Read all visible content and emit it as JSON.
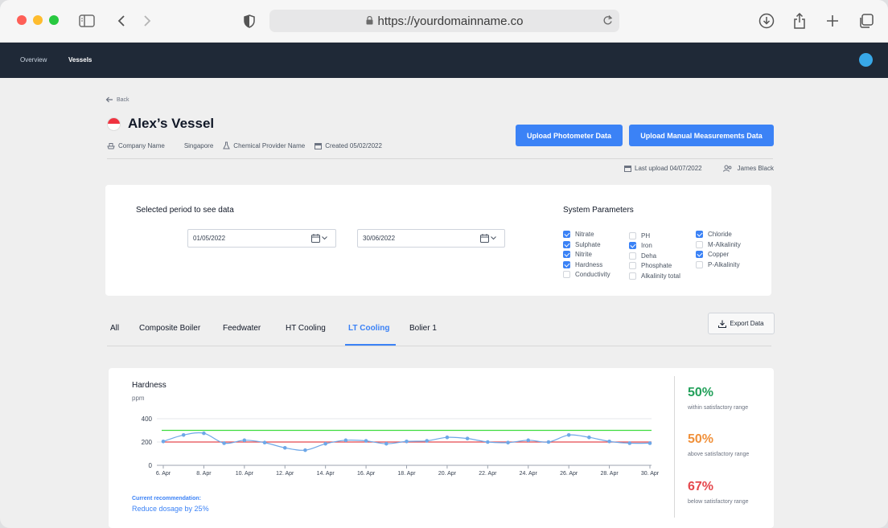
{
  "browser": {
    "url": "https://yourdomainname.co"
  },
  "nav": {
    "items": [
      "Overview",
      "Vessels"
    ],
    "active": "Vessels"
  },
  "page": {
    "back_label": "Back",
    "title": "Alex’s Vessel",
    "flag": "singapore",
    "company": "Company Name",
    "country": "Singapore",
    "chemical_provider": "Chemical Provider Name",
    "created": "Created 05/02/2022",
    "upload_photometer": "Upload Photometer Data",
    "upload_manual": "Upload Manual Measurements Data",
    "last_upload": "Last upload 04/07/2022",
    "user": "James Black"
  },
  "filters": {
    "period_title": "Selected period to see data",
    "start_date": "01/05/2022",
    "end_date": "30/06/2022",
    "params_title": "System Parameters",
    "params": [
      {
        "label": "Nitrate",
        "checked": true
      },
      {
        "label": "Sulphate",
        "checked": true
      },
      {
        "label": "Nitrite",
        "checked": true
      },
      {
        "label": "Hardness",
        "checked": true
      },
      {
        "label": "Conductivity",
        "checked": false
      },
      {
        "label": "PH",
        "checked": false
      },
      {
        "label": "Iron",
        "checked": true
      },
      {
        "label": "Deha",
        "checked": false
      },
      {
        "label": "Phosphate",
        "checked": false
      },
      {
        "label": "Alkalinity total",
        "checked": false
      },
      {
        "label": "Chloride",
        "checked": true
      },
      {
        "label": "M-Alkalinity",
        "checked": false
      },
      {
        "label": "Copper",
        "checked": true
      },
      {
        "label": "P-Alkalinity",
        "checked": false
      }
    ]
  },
  "tabs": {
    "items": [
      "All",
      "Composite Boiler",
      "Feedwater",
      "HT Cooling",
      "LT Cooling",
      "Bolier 1"
    ],
    "active": "LT Cooling",
    "export_label": "Export Data"
  },
  "chart": {
    "title": "Hardness",
    "unit": "ppm",
    "recommendation_label": "Current recommendation:",
    "recommendation": "Reduce dosage by 25%",
    "stats": [
      {
        "value": "50%",
        "label": "within satisfactory range",
        "color": "#22a05a"
      },
      {
        "value": "50%",
        "label": "above satisfactory range",
        "color": "#f0903a"
      },
      {
        "value": "67%",
        "label": "below satisfactory range",
        "color": "#e5484d"
      }
    ]
  },
  "chart_data": {
    "type": "line",
    "title": "Hardness",
    "ylabel": "ppm",
    "ylim": [
      0,
      400
    ],
    "yticks": [
      0,
      200,
      400
    ],
    "xticks": [
      "6. Apr",
      "8. Apr",
      "10. Apr",
      "12. Apr",
      "14. Apr",
      "16. Apr",
      "18. Apr",
      "20. Apr",
      "22. Apr",
      "24. Apr",
      "26. Apr",
      "28. Apr",
      "30. Apr"
    ],
    "x": [
      6,
      7,
      8,
      9,
      10,
      11,
      12,
      13,
      14,
      15,
      16,
      17,
      18,
      19,
      20,
      21,
      22,
      23,
      24,
      25,
      26,
      27,
      28,
      29,
      30
    ],
    "series": [
      {
        "values": [
          205,
          260,
          275,
          190,
          215,
          195,
          150,
          130,
          185,
          215,
          210,
          185,
          205,
          210,
          240,
          230,
          200,
          195,
          215,
          200,
          260,
          240,
          205,
          190,
          190
        ],
        "color": "#6ea8e8"
      }
    ],
    "reference_lines": [
      {
        "value": 300,
        "color": "#3ddc3d"
      },
      {
        "value": 200,
        "color": "#e5484d"
      }
    ],
    "grid": true
  }
}
